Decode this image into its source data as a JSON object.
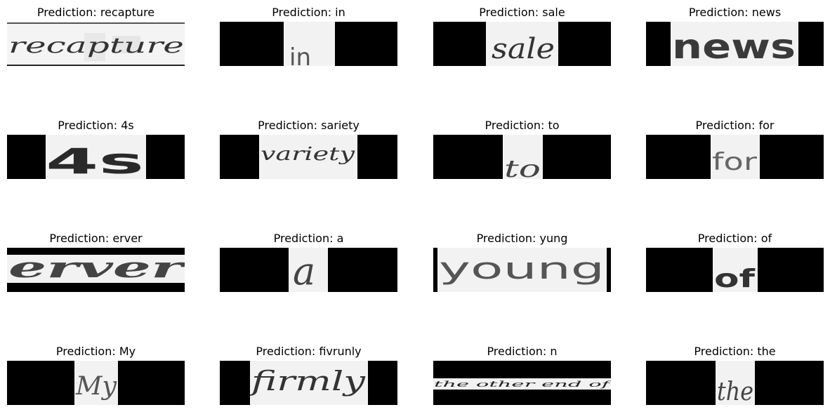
{
  "figure": {
    "panels": [
      {
        "title": "Prediction: recapture",
        "word": "recapture"
      },
      {
        "title": "Prediction: in",
        "word": "in"
      },
      {
        "title": "Prediction: sale",
        "word": "sale"
      },
      {
        "title": "Prediction: news",
        "word": "news"
      },
      {
        "title": "Prediction: 4s",
        "word": "4s"
      },
      {
        "title": "Prediction: sariety",
        "word": "variety"
      },
      {
        "title": "Prediction: to",
        "word": "to"
      },
      {
        "title": "Prediction: for",
        "word": "for"
      },
      {
        "title": "Prediction: erver",
        "word": "erver"
      },
      {
        "title": "Prediction: a",
        "word": "a"
      },
      {
        "title": "Prediction: yung",
        "word": "young"
      },
      {
        "title": "Prediction: of",
        "word": "of"
      },
      {
        "title": "Prediction: My",
        "word": "My"
      },
      {
        "title": "Prediction: fivrunly",
        "word": "firmly"
      },
      {
        "title": "Prediction: n",
        "word": "the other end of"
      },
      {
        "title": "Prediction: the",
        "word": "the"
      }
    ]
  }
}
